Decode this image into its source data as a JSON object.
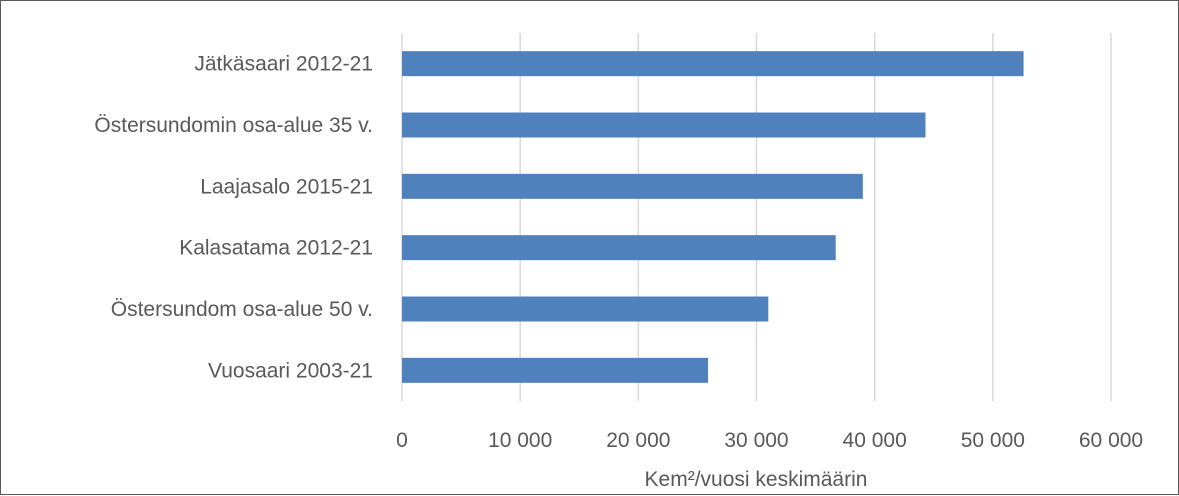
{
  "chart_data": {
    "type": "bar",
    "orientation": "horizontal",
    "categories": [
      "Jätkäsaari 2012-21",
      "Östersundomin osa-alue 35 v.",
      "Laajasalo 2015-21",
      "Kalasatama 2012-21",
      "Östersundom osa-alue 50 v.",
      "Vuosaari 2003-21"
    ],
    "values": [
      52600,
      44300,
      39000,
      36700,
      31000,
      25900
    ],
    "xlim": [
      0,
      60000
    ],
    "xticks": [
      0,
      10000,
      20000,
      30000,
      40000,
      50000,
      60000
    ],
    "xtick_labels": [
      "0",
      "10 000",
      "20 000",
      "30 000",
      "40 000",
      "50 000",
      "60 000"
    ],
    "xlabel": "Kem²/vuosi keskimäärin",
    "ylabel": "",
    "title": "",
    "grid": "vertical",
    "bar_color": "#4f81bd",
    "grid_color": "#d9d9d9",
    "text_color": "#595959"
  }
}
